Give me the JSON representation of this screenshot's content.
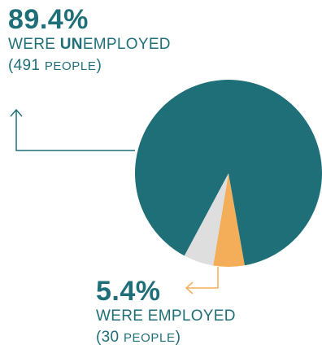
{
  "chart_data": {
    "type": "pie",
    "slices": [
      {
        "label": "WERE UNEMPLOYED",
        "percent": 89.4,
        "people": 491,
        "color": "#1f6f78"
      },
      {
        "label": "WERE EMPLOYED",
        "percent": 5.4,
        "people": 30,
        "color": "#f4ae5a"
      },
      {
        "label": "",
        "percent": 5.2,
        "color": "#dedede"
      }
    ]
  },
  "callouts": {
    "unemployed": {
      "pct": "89.4%",
      "were": "WERE ",
      "un": "UN",
      "employed": "EMPLOYED",
      "count_open": "(491 ",
      "count_word": "PEOPLE",
      "count_close": ")"
    },
    "employed": {
      "pct": "5.4%",
      "label": "WERE EMPLOYED",
      "count_open": "(30 ",
      "count_word": "PEOPLE",
      "count_close": ")"
    }
  },
  "colors": {
    "teal": "#1f6f78",
    "orange": "#f4ae5a",
    "gray": "#dedede"
  }
}
